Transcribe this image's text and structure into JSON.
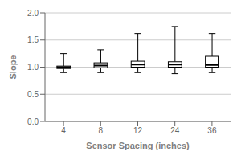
{
  "chart_data": {
    "type": "box",
    "xlabel": "Sensor Spacing (inches)",
    "ylabel": "Slope",
    "categories": [
      "4",
      "8",
      "12",
      "24",
      "36"
    ],
    "boxes": [
      {
        "low": 0.9,
        "q1": 0.975,
        "median": 1.0,
        "q3": 1.02,
        "high": 1.25
      },
      {
        "low": 0.9,
        "q1": 0.99,
        "median": 1.03,
        "q3": 1.08,
        "high": 1.32
      },
      {
        "low": 0.9,
        "q1": 1.0,
        "median": 1.05,
        "q3": 1.11,
        "high": 1.62
      },
      {
        "low": 0.88,
        "q1": 1.0,
        "median": 1.05,
        "q3": 1.1,
        "high": 1.75
      },
      {
        "low": 0.9,
        "q1": 1.0,
        "median": 1.04,
        "q3": 1.2,
        "high": 1.62
      }
    ],
    "ylim": [
      0.0,
      2.0
    ],
    "yticks": [
      {
        "value": 0.0,
        "label": "0.0"
      },
      {
        "value": 0.5,
        "label": "0.5"
      },
      {
        "value": 1.0,
        "label": "1.0"
      },
      {
        "value": 1.5,
        "label": "1.5"
      },
      {
        "value": 2.0,
        "label": "2.0"
      }
    ],
    "color": "#000000",
    "grid": true
  }
}
